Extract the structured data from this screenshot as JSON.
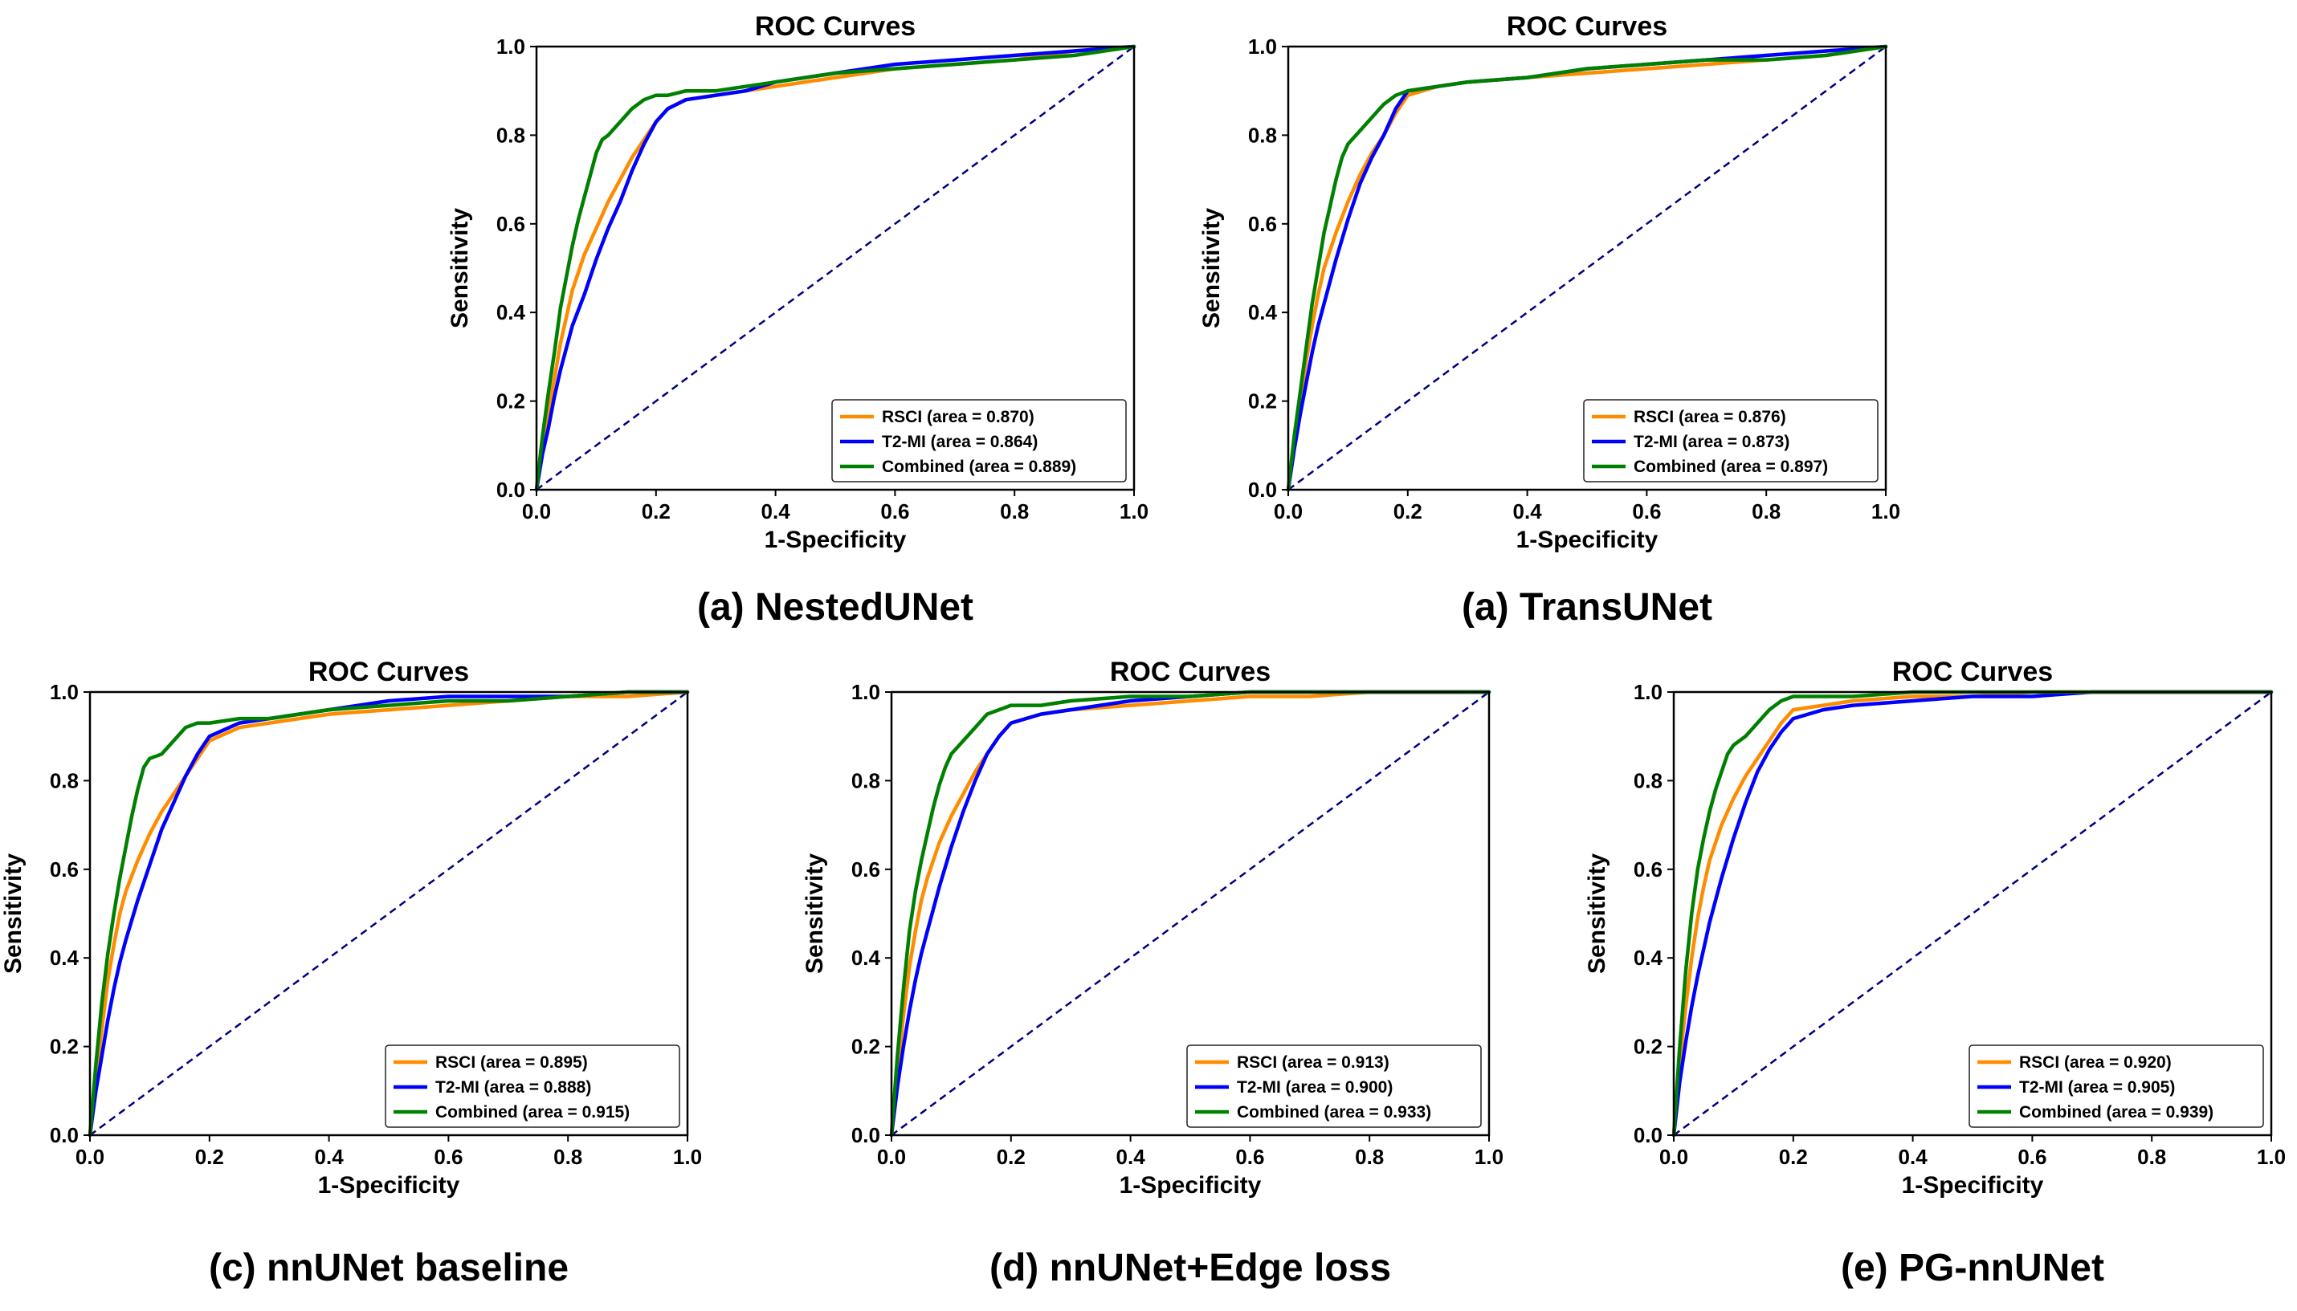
{
  "chart_data": [
    {
      "type": "line",
      "title": "ROC Curves",
      "caption": "(a) NestedUNet",
      "xlabel": "1-Specificity",
      "ylabel": "Sensitivity",
      "xlim": [
        0,
        1
      ],
      "ylim": [
        0,
        1
      ],
      "xticks": [
        "0.0",
        "0.2",
        "0.4",
        "0.6",
        "0.8",
        "1.0"
      ],
      "yticks": [
        "0.0",
        "0.2",
        "0.4",
        "0.6",
        "0.8",
        "1.0"
      ],
      "legend_position": "lower right",
      "diagonal_color": "#000080",
      "series": [
        {
          "name": "RSCI (area = 0.870)",
          "color": "#ff8c00",
          "x": [
            0,
            0.01,
            0.02,
            0.03,
            0.04,
            0.05,
            0.06,
            0.08,
            0.1,
            0.12,
            0.14,
            0.16,
            0.18,
            0.2,
            0.22,
            0.25,
            0.3,
            0.35,
            0.4,
            0.5,
            0.6,
            0.7,
            0.8,
            0.9,
            1.0
          ],
          "y": [
            0,
            0.1,
            0.18,
            0.25,
            0.33,
            0.39,
            0.45,
            0.53,
            0.59,
            0.65,
            0.7,
            0.75,
            0.79,
            0.83,
            0.86,
            0.88,
            0.89,
            0.9,
            0.91,
            0.93,
            0.95,
            0.96,
            0.97,
            0.99,
            1.0
          ]
        },
        {
          "name": "T2-MI (area = 0.864)",
          "color": "#0000ff",
          "x": [
            0,
            0.01,
            0.02,
            0.03,
            0.04,
            0.05,
            0.06,
            0.08,
            0.1,
            0.12,
            0.14,
            0.16,
            0.18,
            0.2,
            0.22,
            0.25,
            0.3,
            0.35,
            0.4,
            0.5,
            0.6,
            0.7,
            0.8,
            0.9,
            1.0
          ],
          "y": [
            0,
            0.08,
            0.14,
            0.21,
            0.27,
            0.32,
            0.37,
            0.44,
            0.52,
            0.59,
            0.65,
            0.72,
            0.78,
            0.83,
            0.86,
            0.88,
            0.89,
            0.9,
            0.92,
            0.94,
            0.96,
            0.97,
            0.98,
            0.99,
            1.0
          ]
        },
        {
          "name": "Combined (area = 0.889)",
          "color": "#008000",
          "x": [
            0,
            0.01,
            0.02,
            0.03,
            0.04,
            0.05,
            0.06,
            0.07,
            0.08,
            0.09,
            0.1,
            0.11,
            0.12,
            0.14,
            0.16,
            0.18,
            0.2,
            0.22,
            0.25,
            0.3,
            0.4,
            0.5,
            0.6,
            0.7,
            0.8,
            0.9,
            1.0
          ],
          "y": [
            0,
            0.12,
            0.22,
            0.31,
            0.41,
            0.48,
            0.55,
            0.61,
            0.66,
            0.71,
            0.76,
            0.79,
            0.8,
            0.83,
            0.86,
            0.88,
            0.89,
            0.89,
            0.9,
            0.9,
            0.92,
            0.94,
            0.95,
            0.96,
            0.97,
            0.98,
            1.0
          ]
        }
      ]
    },
    {
      "type": "line",
      "title": "ROC Curves",
      "caption": "(a) TransUNet",
      "xlabel": "1-Specificity",
      "ylabel": "Sensitivity",
      "xlim": [
        0,
        1
      ],
      "ylim": [
        0,
        1
      ],
      "xticks": [
        "0.0",
        "0.2",
        "0.4",
        "0.6",
        "0.8",
        "1.0"
      ],
      "yticks": [
        "0.0",
        "0.2",
        "0.4",
        "0.6",
        "0.8",
        "1.0"
      ],
      "legend_position": "lower right",
      "diagonal_color": "#000080",
      "series": [
        {
          "name": "RSCI (area = 0.876)",
          "color": "#ff8c00",
          "x": [
            0,
            0.01,
            0.02,
            0.03,
            0.04,
            0.05,
            0.06,
            0.08,
            0.1,
            0.12,
            0.14,
            0.16,
            0.18,
            0.2,
            0.25,
            0.3,
            0.4,
            0.5,
            0.6,
            0.7,
            0.8,
            0.9,
            1.0
          ],
          "y": [
            0,
            0.1,
            0.2,
            0.29,
            0.37,
            0.44,
            0.5,
            0.58,
            0.65,
            0.71,
            0.76,
            0.8,
            0.85,
            0.89,
            0.91,
            0.92,
            0.93,
            0.94,
            0.95,
            0.96,
            0.97,
            0.98,
            1.0
          ]
        },
        {
          "name": "T2-MI (area = 0.873)",
          "color": "#0000ff",
          "x": [
            0,
            0.01,
            0.02,
            0.03,
            0.04,
            0.05,
            0.06,
            0.08,
            0.1,
            0.12,
            0.14,
            0.16,
            0.18,
            0.2,
            0.25,
            0.3,
            0.4,
            0.5,
            0.6,
            0.7,
            0.8,
            0.9,
            1.0
          ],
          "y": [
            0,
            0.09,
            0.17,
            0.24,
            0.31,
            0.37,
            0.42,
            0.52,
            0.61,
            0.69,
            0.75,
            0.8,
            0.86,
            0.9,
            0.91,
            0.92,
            0.93,
            0.95,
            0.96,
            0.97,
            0.98,
            0.99,
            1.0
          ]
        },
        {
          "name": "Combined (area = 0.897)",
          "color": "#008000",
          "x": [
            0,
            0.01,
            0.02,
            0.03,
            0.04,
            0.05,
            0.06,
            0.07,
            0.08,
            0.09,
            0.1,
            0.12,
            0.14,
            0.16,
            0.18,
            0.2,
            0.25,
            0.3,
            0.4,
            0.5,
            0.6,
            0.7,
            0.8,
            0.9,
            1.0
          ],
          "y": [
            0,
            0.12,
            0.22,
            0.32,
            0.42,
            0.5,
            0.58,
            0.64,
            0.7,
            0.75,
            0.78,
            0.81,
            0.84,
            0.87,
            0.89,
            0.9,
            0.91,
            0.92,
            0.93,
            0.95,
            0.96,
            0.97,
            0.97,
            0.98,
            1.0
          ]
        }
      ]
    },
    {
      "type": "line",
      "title": "ROC Curves",
      "caption": "(c) nnUNet baseline",
      "xlabel": "1-Specificity",
      "ylabel": "Sensitivity",
      "xlim": [
        0,
        1
      ],
      "ylim": [
        0,
        1
      ],
      "xticks": [
        "0.0",
        "0.2",
        "0.4",
        "0.6",
        "0.8",
        "1.0"
      ],
      "yticks": [
        "0.0",
        "0.2",
        "0.4",
        "0.6",
        "0.8",
        "1.0"
      ],
      "legend_position": "lower right",
      "diagonal_color": "#000080",
      "series": [
        {
          "name": "RSCI (area = 0.895)",
          "color": "#ff8c00",
          "x": [
            0,
            0.01,
            0.02,
            0.03,
            0.04,
            0.05,
            0.06,
            0.08,
            0.1,
            0.12,
            0.14,
            0.16,
            0.18,
            0.2,
            0.25,
            0.3,
            0.4,
            0.5,
            0.6,
            0.7,
            0.8,
            0.9,
            1.0
          ],
          "y": [
            0,
            0.13,
            0.24,
            0.35,
            0.43,
            0.5,
            0.55,
            0.62,
            0.68,
            0.73,
            0.77,
            0.81,
            0.85,
            0.89,
            0.92,
            0.93,
            0.95,
            0.96,
            0.97,
            0.98,
            0.99,
            0.99,
            1.0
          ]
        },
        {
          "name": "T2-MI (area = 0.888)",
          "color": "#0000ff",
          "x": [
            0,
            0.01,
            0.02,
            0.03,
            0.04,
            0.05,
            0.06,
            0.08,
            0.1,
            0.12,
            0.14,
            0.16,
            0.18,
            0.2,
            0.25,
            0.3,
            0.4,
            0.5,
            0.6,
            0.7,
            0.8,
            0.9,
            1.0
          ],
          "y": [
            0,
            0.1,
            0.18,
            0.26,
            0.33,
            0.39,
            0.44,
            0.53,
            0.61,
            0.69,
            0.75,
            0.81,
            0.86,
            0.9,
            0.93,
            0.94,
            0.96,
            0.98,
            0.99,
            0.99,
            0.99,
            1.0,
            1.0
          ]
        },
        {
          "name": "Combined (area = 0.915)",
          "color": "#008000",
          "x": [
            0,
            0.01,
            0.02,
            0.03,
            0.04,
            0.05,
            0.06,
            0.07,
            0.08,
            0.09,
            0.1,
            0.12,
            0.14,
            0.16,
            0.18,
            0.2,
            0.25,
            0.3,
            0.4,
            0.5,
            0.6,
            0.7,
            0.8,
            0.9,
            1.0
          ],
          "y": [
            0,
            0.16,
            0.3,
            0.41,
            0.5,
            0.58,
            0.65,
            0.72,
            0.78,
            0.83,
            0.85,
            0.86,
            0.89,
            0.92,
            0.93,
            0.93,
            0.94,
            0.94,
            0.96,
            0.97,
            0.98,
            0.98,
            0.99,
            1.0,
            1.0
          ]
        }
      ]
    },
    {
      "type": "line",
      "title": "ROC Curves",
      "caption": "(d) nnUNet+Edge loss",
      "xlabel": "1-Specificity",
      "ylabel": "Sensitivity",
      "xlim": [
        0,
        1
      ],
      "ylim": [
        0,
        1
      ],
      "xticks": [
        "0.0",
        "0.2",
        "0.4",
        "0.6",
        "0.8",
        "1.0"
      ],
      "yticks": [
        "0.0",
        "0.2",
        "0.4",
        "0.6",
        "0.8",
        "1.0"
      ],
      "legend_position": "lower right",
      "diagonal_color": "#000080",
      "series": [
        {
          "name": "RSCI (area = 0.913)",
          "color": "#ff8c00",
          "x": [
            0,
            0.01,
            0.02,
            0.03,
            0.04,
            0.05,
            0.06,
            0.08,
            0.1,
            0.12,
            0.14,
            0.16,
            0.18,
            0.2,
            0.25,
            0.3,
            0.4,
            0.5,
            0.6,
            0.7,
            0.8,
            0.9,
            1.0
          ],
          "y": [
            0,
            0.14,
            0.27,
            0.38,
            0.46,
            0.53,
            0.58,
            0.66,
            0.72,
            0.77,
            0.82,
            0.86,
            0.9,
            0.93,
            0.95,
            0.96,
            0.97,
            0.98,
            0.99,
            0.99,
            1.0,
            1.0,
            1.0
          ]
        },
        {
          "name": "T2-MI (area = 0.900)",
          "color": "#0000ff",
          "x": [
            0,
            0.01,
            0.02,
            0.03,
            0.04,
            0.05,
            0.06,
            0.08,
            0.1,
            0.12,
            0.14,
            0.16,
            0.18,
            0.2,
            0.25,
            0.3,
            0.4,
            0.5,
            0.6,
            0.7,
            0.8,
            0.9,
            1.0
          ],
          "y": [
            0,
            0.11,
            0.2,
            0.28,
            0.35,
            0.41,
            0.46,
            0.56,
            0.65,
            0.73,
            0.8,
            0.86,
            0.9,
            0.93,
            0.95,
            0.96,
            0.98,
            0.99,
            1.0,
            1.0,
            1.0,
            1.0,
            1.0
          ]
        },
        {
          "name": "Combined (area = 0.933)",
          "color": "#008000",
          "x": [
            0,
            0.01,
            0.02,
            0.03,
            0.04,
            0.05,
            0.06,
            0.07,
            0.08,
            0.09,
            0.1,
            0.12,
            0.14,
            0.16,
            0.18,
            0.2,
            0.25,
            0.3,
            0.4,
            0.5,
            0.6,
            0.7,
            0.8,
            0.9,
            1.0
          ],
          "y": [
            0,
            0.18,
            0.33,
            0.46,
            0.55,
            0.62,
            0.68,
            0.74,
            0.79,
            0.83,
            0.86,
            0.89,
            0.92,
            0.95,
            0.96,
            0.97,
            0.97,
            0.98,
            0.99,
            0.99,
            1.0,
            1.0,
            1.0,
            1.0,
            1.0
          ]
        }
      ]
    },
    {
      "type": "line",
      "title": "ROC Curves",
      "caption": "(e) PG-nnUNet",
      "xlabel": "1-Specificity",
      "ylabel": "Sensitivity",
      "xlim": [
        0,
        1
      ],
      "ylim": [
        0,
        1
      ],
      "xticks": [
        "0.0",
        "0.2",
        "0.4",
        "0.6",
        "0.8",
        "1.0"
      ],
      "yticks": [
        "0.0",
        "0.2",
        "0.4",
        "0.6",
        "0.8",
        "1.0"
      ],
      "legend_position": "lower right",
      "diagonal_color": "#000080",
      "series": [
        {
          "name": "RSCI (area = 0.920)",
          "color": "#ff8c00",
          "x": [
            0,
            0.01,
            0.02,
            0.03,
            0.04,
            0.05,
            0.06,
            0.08,
            0.1,
            0.12,
            0.14,
            0.16,
            0.18,
            0.2,
            0.25,
            0.3,
            0.4,
            0.5,
            0.6,
            0.7,
            0.8,
            0.9,
            1.0
          ],
          "y": [
            0,
            0.16,
            0.29,
            0.4,
            0.49,
            0.56,
            0.62,
            0.7,
            0.76,
            0.81,
            0.85,
            0.89,
            0.93,
            0.96,
            0.97,
            0.98,
            0.99,
            0.99,
            1.0,
            1.0,
            1.0,
            1.0,
            1.0
          ]
        },
        {
          "name": "T2-MI (area = 0.905)",
          "color": "#0000ff",
          "x": [
            0,
            0.01,
            0.02,
            0.03,
            0.04,
            0.05,
            0.06,
            0.08,
            0.1,
            0.12,
            0.14,
            0.16,
            0.18,
            0.2,
            0.25,
            0.3,
            0.4,
            0.5,
            0.6,
            0.7,
            0.8,
            0.9,
            1.0
          ],
          "y": [
            0,
            0.12,
            0.21,
            0.29,
            0.36,
            0.42,
            0.48,
            0.58,
            0.67,
            0.75,
            0.82,
            0.87,
            0.91,
            0.94,
            0.96,
            0.97,
            0.98,
            0.99,
            0.99,
            1.0,
            1.0,
            1.0,
            1.0
          ]
        },
        {
          "name": "Combined (area = 0.939)",
          "color": "#008000",
          "x": [
            0,
            0.01,
            0.02,
            0.03,
            0.04,
            0.05,
            0.06,
            0.07,
            0.08,
            0.09,
            0.1,
            0.12,
            0.14,
            0.16,
            0.18,
            0.2,
            0.25,
            0.3,
            0.4,
            0.5,
            0.6,
            0.7,
            0.8,
            0.9,
            1.0
          ],
          "y": [
            0,
            0.2,
            0.37,
            0.5,
            0.6,
            0.67,
            0.73,
            0.78,
            0.82,
            0.86,
            0.88,
            0.9,
            0.93,
            0.96,
            0.98,
            0.99,
            0.99,
            0.99,
            1.0,
            1.0,
            1.0,
            1.0,
            1.0,
            1.0,
            1.0
          ]
        }
      ]
    }
  ]
}
